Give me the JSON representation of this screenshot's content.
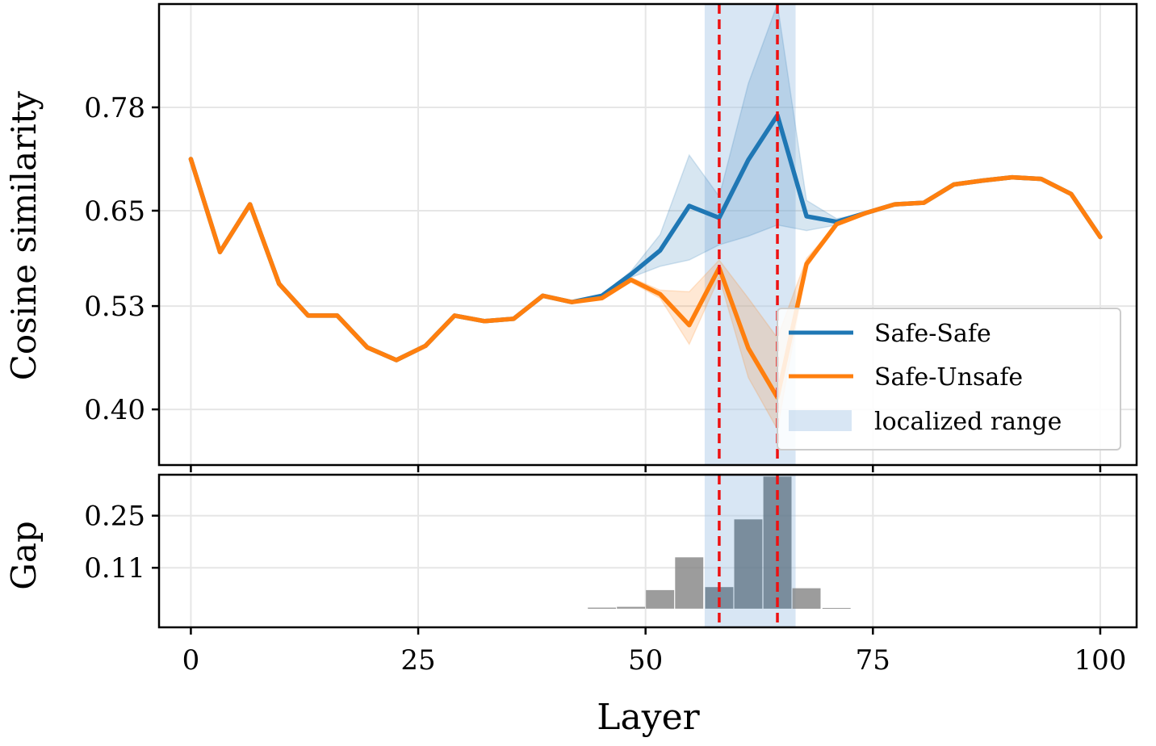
{
  "chart_data": [
    {
      "type": "line",
      "panel": "top",
      "ylabel": "Cosine similarity",
      "xlim": [
        -3.5,
        104
      ],
      "ylim": [
        0.33,
        0.91
      ],
      "yticks": [
        0.4,
        0.53,
        0.65,
        0.78
      ],
      "ytick_labels": [
        "0.40",
        "0.53",
        "0.65",
        "0.78"
      ],
      "xticks": [
        0,
        25,
        50,
        75,
        100
      ],
      "grid": true,
      "legend": {
        "position": "bottom-right",
        "entries": [
          "Safe-Safe",
          "Safe-Unsafe",
          "localized range"
        ]
      },
      "localized_range": [
        56.5,
        66.5
      ],
      "vlines": [
        58.1,
        64.5
      ],
      "x": [
        0,
        3.2,
        6.5,
        9.7,
        12.9,
        16.1,
        19.4,
        22.6,
        25.8,
        29.0,
        32.3,
        35.5,
        38.7,
        41.9,
        45.2,
        48.4,
        51.6,
        54.8,
        58.1,
        61.3,
        64.5,
        67.7,
        71.0,
        74.2,
        77.4,
        80.6,
        83.9,
        87.1,
        90.3,
        93.5,
        96.8,
        100
      ],
      "series": [
        {
          "name": "Safe-Safe",
          "color": "#1f77b4",
          "values": [
            0.715,
            0.598,
            0.658,
            0.558,
            0.518,
            0.518,
            0.478,
            0.462,
            0.48,
            0.518,
            0.511,
            0.514,
            0.543,
            0.535,
            0.543,
            0.57,
            0.6,
            0.656,
            0.641,
            0.714,
            0.77,
            0.643,
            0.636,
            0.647,
            0.658,
            0.66,
            0.683,
            0.688,
            0.692,
            0.69,
            0.671,
            0.617
          ],
          "band_lower": [
            0.715,
            0.598,
            0.658,
            0.558,
            0.518,
            0.518,
            0.478,
            0.462,
            0.48,
            0.518,
            0.511,
            0.514,
            0.543,
            0.535,
            0.543,
            0.566,
            0.58,
            0.588,
            0.607,
            0.618,
            0.632,
            0.625,
            0.632,
            0.647,
            0.658,
            0.66,
            0.683,
            0.688,
            0.692,
            0.69,
            0.671,
            0.617
          ],
          "band_upper": [
            0.715,
            0.598,
            0.658,
            0.558,
            0.518,
            0.518,
            0.478,
            0.462,
            0.48,
            0.518,
            0.511,
            0.514,
            0.543,
            0.535,
            0.543,
            0.574,
            0.62,
            0.72,
            0.668,
            0.81,
            0.91,
            0.663,
            0.64,
            0.647,
            0.658,
            0.66,
            0.683,
            0.688,
            0.692,
            0.69,
            0.671,
            0.617
          ]
        },
        {
          "name": "Safe-Unsafe",
          "color": "#ff7f0e",
          "values": [
            0.715,
            0.598,
            0.658,
            0.558,
            0.518,
            0.518,
            0.478,
            0.462,
            0.48,
            0.518,
            0.511,
            0.514,
            0.543,
            0.535,
            0.54,
            0.563,
            0.545,
            0.506,
            0.578,
            0.477,
            0.415,
            0.583,
            0.633,
            0.647,
            0.658,
            0.66,
            0.683,
            0.688,
            0.692,
            0.69,
            0.671,
            0.617
          ],
          "band_lower": [
            0.715,
            0.598,
            0.658,
            0.558,
            0.518,
            0.518,
            0.478,
            0.462,
            0.48,
            0.518,
            0.511,
            0.514,
            0.543,
            0.535,
            0.54,
            0.56,
            0.54,
            0.482,
            0.566,
            0.44,
            0.375,
            0.578,
            0.633,
            0.647,
            0.658,
            0.66,
            0.683,
            0.688,
            0.692,
            0.69,
            0.671,
            0.617
          ],
          "band_upper": [
            0.715,
            0.598,
            0.658,
            0.558,
            0.518,
            0.518,
            0.478,
            0.462,
            0.48,
            0.518,
            0.511,
            0.514,
            0.543,
            0.535,
            0.54,
            0.566,
            0.55,
            0.548,
            0.588,
            0.54,
            0.49,
            0.59,
            0.633,
            0.647,
            0.658,
            0.66,
            0.683,
            0.688,
            0.692,
            0.69,
            0.671,
            0.617
          ]
        }
      ]
    },
    {
      "type": "bar",
      "panel": "bottom",
      "xlabel": "Layer",
      "ylabel": "Gap",
      "xlim": [
        -3.5,
        104
      ],
      "ylim": [
        -0.05,
        0.36
      ],
      "yticks": [
        0.11,
        0.25
      ],
      "ytick_labels": [
        "0.11",
        "0.25"
      ],
      "xticks": [
        0,
        25,
        50,
        75,
        100
      ],
      "xtick_labels": [
        "0",
        "25",
        "50",
        "75",
        "100"
      ],
      "grid": true,
      "bar_color": "#808080",
      "bar_color_highlight": "#5f7384",
      "x": [
        45.2,
        48.4,
        51.6,
        54.8,
        58.1,
        61.3,
        64.5,
        67.7,
        71.0
      ],
      "values": [
        0.003,
        0.005,
        0.05,
        0.138,
        0.058,
        0.24,
        0.355,
        0.055,
        0.002
      ],
      "highlighted": [
        false,
        false,
        false,
        false,
        true,
        true,
        true,
        false,
        false
      ]
    }
  ]
}
